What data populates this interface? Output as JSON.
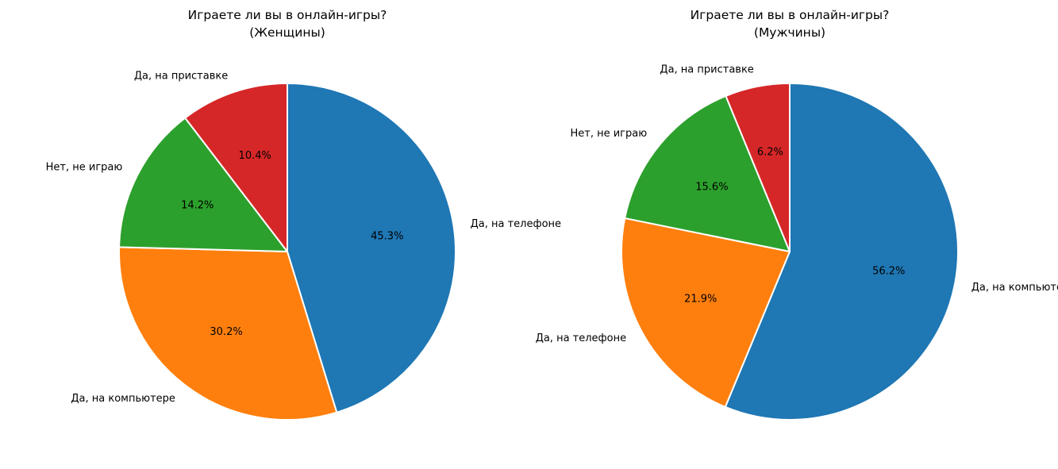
{
  "chart_data": [
    {
      "type": "pie",
      "title": "Играете ли вы в онлайн-игры?",
      "subtitle": "(Женщины)",
      "slices": [
        {
          "label": "Да, на телефоне",
          "value": 45.3,
          "pct_text": "45.3%",
          "color": "#1f77b4"
        },
        {
          "label": "Да, на компьютере",
          "value": 30.2,
          "pct_text": "30.2%",
          "color": "#ff7f0e"
        },
        {
          "label": "Нет, не играю",
          "value": 14.2,
          "pct_text": "14.2%",
          "color": "#2ca02c"
        },
        {
          "label": "Да, на приставке",
          "value": 10.4,
          "pct_text": "10.4%",
          "color": "#d62728"
        }
      ]
    },
    {
      "type": "pie",
      "title": "Играете ли вы в онлайн-игры?",
      "subtitle": "(Мужчины)",
      "slices": [
        {
          "label": "Да, на компьютере",
          "value": 56.2,
          "pct_text": "56.2%",
          "color": "#1f77b4"
        },
        {
          "label": "Да, на телефоне",
          "value": 21.9,
          "pct_text": "21.9%",
          "color": "#ff7f0e"
        },
        {
          "label": "Нет, не играю",
          "value": 15.6,
          "pct_text": "15.6%",
          "color": "#2ca02c"
        },
        {
          "label": "Да, на приставке",
          "value": 6.2,
          "pct_text": "6.2%",
          "color": "#d62728"
        }
      ]
    }
  ]
}
